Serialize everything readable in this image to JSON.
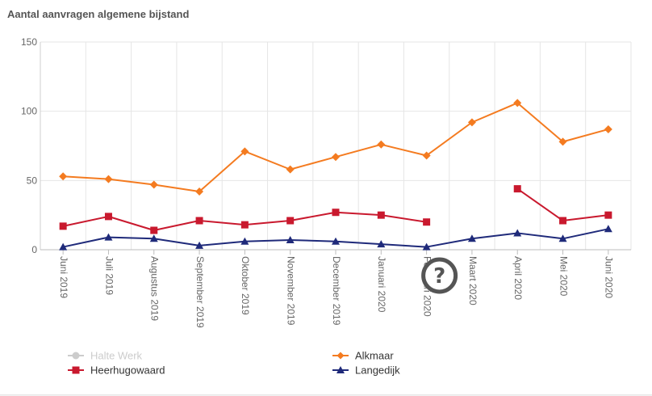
{
  "chart_data": {
    "type": "line",
    "title": "Aantal aanvragen algemene bijstand",
    "xlabel": "",
    "ylabel": "",
    "ylim": [
      0,
      150
    ],
    "yticks": [
      0,
      50,
      100,
      150
    ],
    "grid": true,
    "legend_position": "bottom",
    "categories": [
      "Juni 2019",
      "Juli 2019",
      "Augustus 2019",
      "September 2019",
      "Oktober 2019",
      "November 2019",
      "December 2019",
      "Januari 2020",
      "Februari 2020",
      "Maart 2020",
      "April 2020",
      "Mei 2020",
      "Juni 2020"
    ],
    "series": [
      {
        "name": "Halte Werk",
        "color": "#cccccc",
        "marker": "circle",
        "hidden": true,
        "values": [
          null,
          null,
          null,
          null,
          null,
          null,
          null,
          null,
          null,
          null,
          null,
          null,
          null
        ]
      },
      {
        "name": "Alkmaar",
        "color": "#f47b20",
        "marker": "diamond",
        "values": [
          53,
          51,
          47,
          42,
          71,
          58,
          67,
          76,
          68,
          92,
          106,
          78,
          87
        ]
      },
      {
        "name": "Heerhugowaard",
        "color": "#c9192e",
        "marker": "square",
        "values": [
          17,
          24,
          14,
          21,
          18,
          21,
          27,
          25,
          20,
          null,
          44,
          21,
          25
        ]
      },
      {
        "name": "Langedijk",
        "color": "#1f2a7a",
        "marker": "triangle",
        "values": [
          2,
          9,
          8,
          3,
          6,
          7,
          6,
          4,
          2,
          8,
          12,
          8,
          15
        ]
      }
    ]
  },
  "help": {
    "icon": "question-icon",
    "label": "?"
  }
}
